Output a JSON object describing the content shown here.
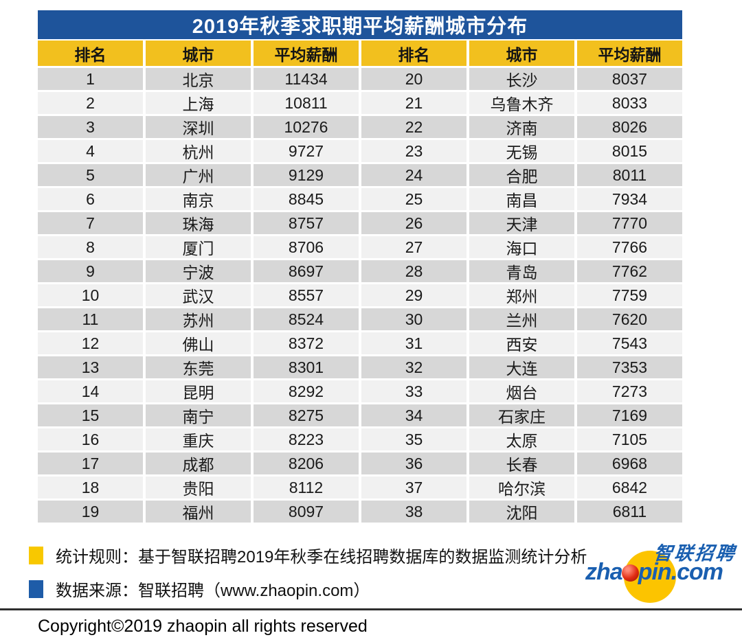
{
  "page_title": "2019年秋季求职期平均薪酬城市分布",
  "chart_data": {
    "type": "table",
    "title": "2019年秋季求职期平均薪酬城市分布",
    "columns": [
      "排名",
      "城市",
      "平均薪酬"
    ],
    "layout": "two-column split: ranks 1-19 in left half, ranks 20-38 in right half",
    "rows": [
      [
        "1",
        "北京",
        "11434"
      ],
      [
        "2",
        "上海",
        "10811"
      ],
      [
        "3",
        "深圳",
        "10276"
      ],
      [
        "4",
        "杭州",
        "9727"
      ],
      [
        "5",
        "广州",
        "9129"
      ],
      [
        "6",
        "南京",
        "8845"
      ],
      [
        "7",
        "珠海",
        "8757"
      ],
      [
        "8",
        "厦门",
        "8706"
      ],
      [
        "9",
        "宁波",
        "8697"
      ],
      [
        "10",
        "武汉",
        "8557"
      ],
      [
        "11",
        "苏州",
        "8524"
      ],
      [
        "12",
        "佛山",
        "8372"
      ],
      [
        "13",
        "东莞",
        "8301"
      ],
      [
        "14",
        "昆明",
        "8292"
      ],
      [
        "15",
        "南宁",
        "8275"
      ],
      [
        "16",
        "重庆",
        "8223"
      ],
      [
        "17",
        "成都",
        "8206"
      ],
      [
        "18",
        "贵阳",
        "8112"
      ],
      [
        "19",
        "福州",
        "8097"
      ],
      [
        "20",
        "长沙",
        "8037"
      ],
      [
        "21",
        "乌鲁木齐",
        "8033"
      ],
      [
        "22",
        "济南",
        "8026"
      ],
      [
        "23",
        "无锡",
        "8015"
      ],
      [
        "24",
        "合肥",
        "8011"
      ],
      [
        "25",
        "南昌",
        "7934"
      ],
      [
        "26",
        "天津",
        "7770"
      ],
      [
        "27",
        "海口",
        "7766"
      ],
      [
        "28",
        "青岛",
        "7762"
      ],
      [
        "29",
        "郑州",
        "7759"
      ],
      [
        "30",
        "兰州",
        "7620"
      ],
      [
        "31",
        "西安",
        "7543"
      ],
      [
        "32",
        "大连",
        "7353"
      ],
      [
        "33",
        "烟台",
        "7273"
      ],
      [
        "34",
        "石家庄",
        "7169"
      ],
      [
        "35",
        "太原",
        "7105"
      ],
      [
        "36",
        "长春",
        "6968"
      ],
      [
        "37",
        "哈尔滨",
        "6842"
      ],
      [
        "38",
        "沈阳",
        "6811"
      ]
    ]
  },
  "table": {
    "headers": [
      "排名",
      "城市",
      "平均薪酬",
      "排名",
      "城市",
      "平均薪酬"
    ]
  },
  "notes": [
    {
      "text": "统计规则：基于智联招聘2019年秋季在线招聘数据库的数据监测统计分析"
    },
    {
      "text": "数据来源：智联招聘（www.zhaopin.com）"
    }
  ],
  "logo": {
    "cn": "智联招聘",
    "domain_prefix": "zha",
    "domain_suffix": "pin.com"
  },
  "copyright": "Copyright©2019 zhaopin all rights reserved",
  "colors": {
    "title_bar_blue": "#1E549B",
    "header_yellow": "#F2C01E",
    "row_gray": "#D7D7D7",
    "row_light": "#F1F1F1",
    "note_bullet_yellow": "#F8C800",
    "note_bullet_blue": "#1E5CA8",
    "logo_blue": "#1A5FB0",
    "logo_circle_yellow": "#FCC400",
    "logo_ball_red": "#D42B10"
  }
}
